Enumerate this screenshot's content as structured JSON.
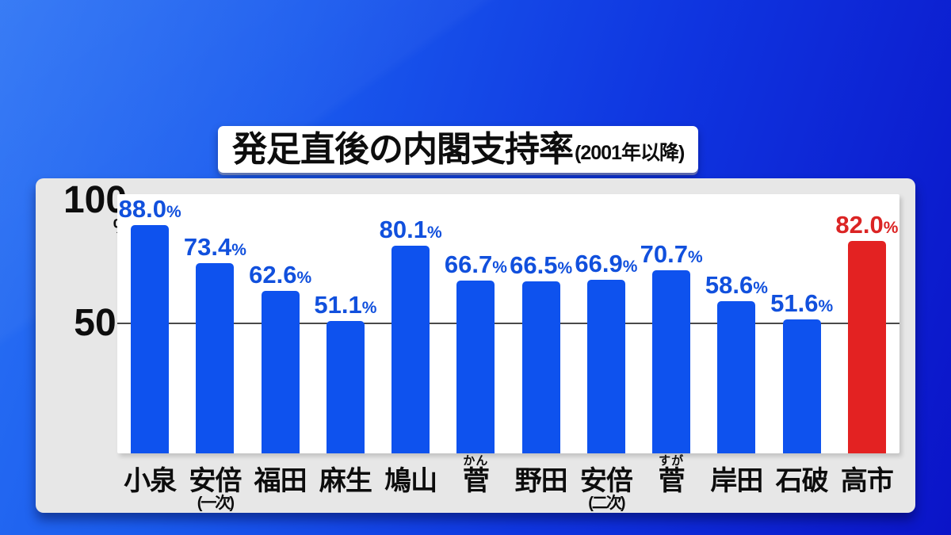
{
  "title": {
    "main": "発足直後の内閣支持率",
    "note": "(2001年以降)"
  },
  "y_axis": {
    "top_tick": "100",
    "unit": "%",
    "mid_tick": "50"
  },
  "colors": {
    "bar_blue": "#0e52ee",
    "bar_red": "#e32222",
    "label_blue": "#1150dd",
    "label_red": "#db2424",
    "gridline": "#4a4a4a",
    "panel_bg": "#e7e7e7",
    "plot_bg": "#ffffff",
    "background_deep_blue": "#0b14c8",
    "background_light_blue": "#2a72f4"
  },
  "chart_data": {
    "type": "bar",
    "title": "発足直後の内閣支持率",
    "subtitle": "(2001年以降)",
    "ylabel": "%",
    "ylim": [
      0,
      100
    ],
    "yticks": [
      50,
      100
    ],
    "gridline_at": 50,
    "grid": true,
    "legend": false,
    "categories": [
      "小泉",
      "安倍(一次)",
      "福田",
      "麻生",
      "鳩山",
      "菅(かん)",
      "野田",
      "安倍(二次)",
      "菅(すが)",
      "岸田",
      "石破",
      "高市"
    ],
    "values": [
      88.0,
      73.4,
      62.6,
      51.1,
      80.1,
      66.7,
      66.5,
      66.9,
      70.7,
      58.6,
      51.6,
      82.0
    ],
    "value_suffix": "%",
    "bars": [
      {
        "label": "小泉",
        "furigana": "",
        "note": "",
        "value": 88.0,
        "highlight": false
      },
      {
        "label": "安倍",
        "furigana": "",
        "note": "(一次)",
        "value": 73.4,
        "highlight": false
      },
      {
        "label": "福田",
        "furigana": "",
        "note": "",
        "value": 62.6,
        "highlight": false
      },
      {
        "label": "麻生",
        "furigana": "",
        "note": "",
        "value": 51.1,
        "highlight": false
      },
      {
        "label": "鳩山",
        "furigana": "",
        "note": "",
        "value": 80.1,
        "highlight": false
      },
      {
        "label": "菅",
        "furigana": "かん",
        "note": "",
        "value": 66.7,
        "highlight": false
      },
      {
        "label": "野田",
        "furigana": "",
        "note": "",
        "value": 66.5,
        "highlight": false
      },
      {
        "label": "安倍",
        "furigana": "",
        "note": "(二次)",
        "value": 66.9,
        "highlight": false
      },
      {
        "label": "菅",
        "furigana": "すが",
        "note": "",
        "value": 70.7,
        "highlight": false
      },
      {
        "label": "岸田",
        "furigana": "",
        "note": "",
        "value": 58.6,
        "highlight": false
      },
      {
        "label": "石破",
        "furigana": "",
        "note": "",
        "value": 51.6,
        "highlight": false
      },
      {
        "label": "高市",
        "furigana": "",
        "note": "",
        "value": 82.0,
        "highlight": true
      }
    ]
  }
}
